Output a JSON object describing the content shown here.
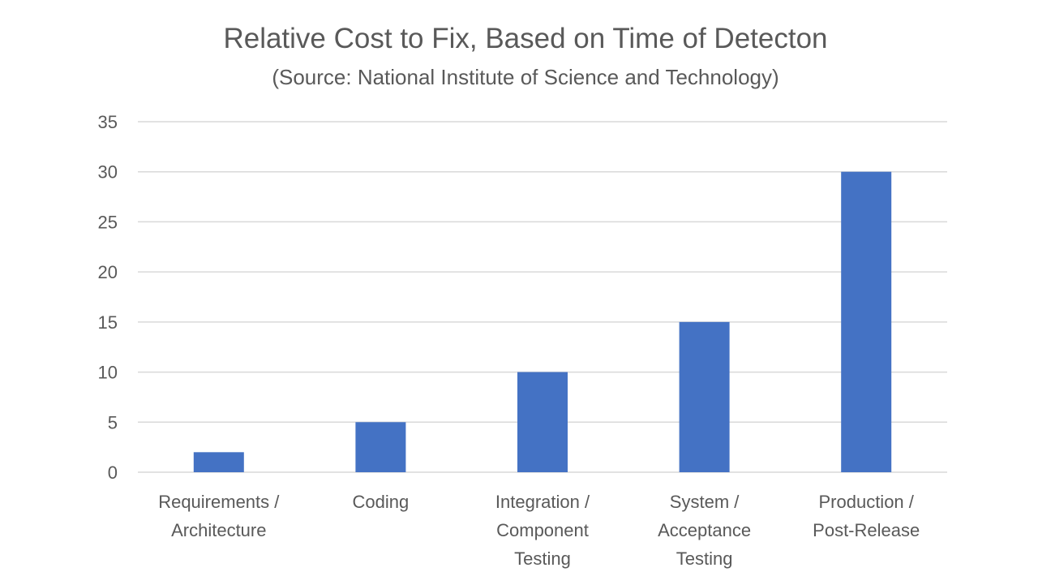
{
  "chart_data": {
    "type": "bar",
    "title": "Relative Cost to Fix, Based on Time of Detecton",
    "subtitle": "(Source: National Institute of Science and Technology)",
    "xlabel": "",
    "ylabel": "",
    "categories": [
      [
        "Requirements /",
        "Architecture"
      ],
      [
        "Coding"
      ],
      [
        "Integration /",
        "Component",
        "Testing"
      ],
      [
        "System /",
        "Acceptance",
        "Testing"
      ],
      [
        "Production /",
        "Post-Release"
      ]
    ],
    "values": [
      2,
      5,
      10,
      15,
      30
    ],
    "ylim": [
      0,
      35
    ],
    "yticks": [
      0,
      5,
      10,
      15,
      20,
      25,
      30,
      35
    ],
    "grid": true,
    "legend": "none",
    "bar_color": "#4472C4",
    "grid_color": "#D9D9D9"
  }
}
